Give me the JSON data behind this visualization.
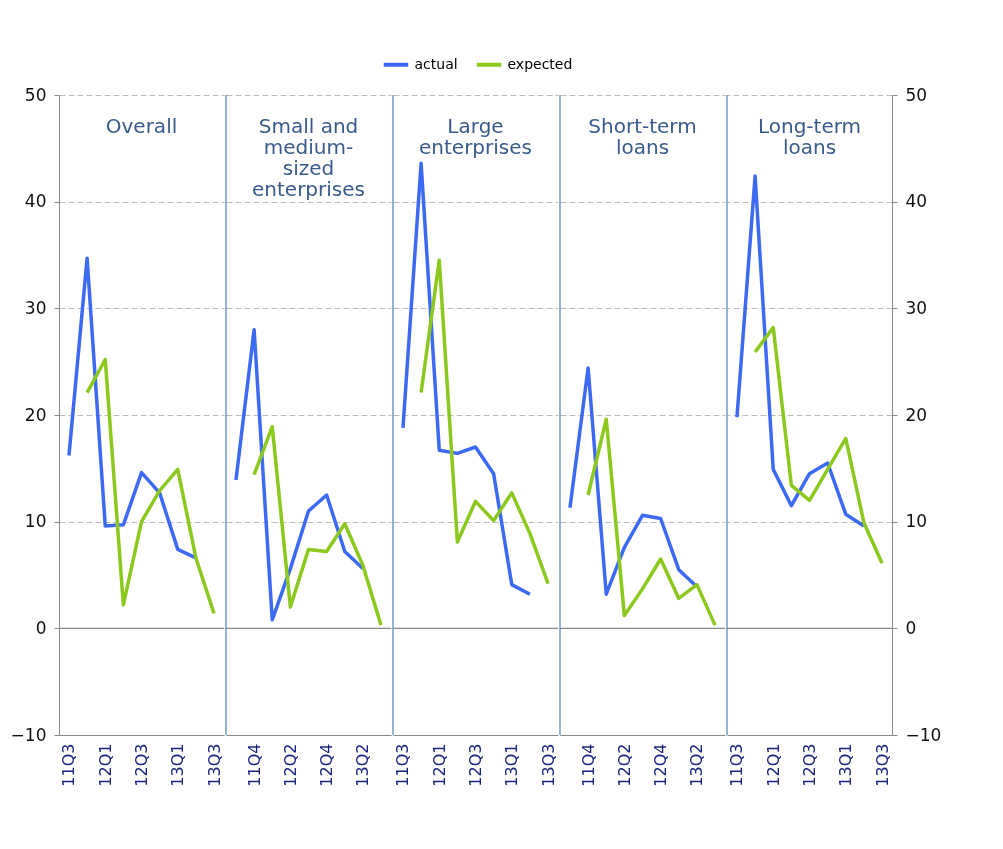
{
  "chart_data": [
    {
      "type": "line",
      "title": "Overall",
      "categories": [
        "11Q3",
        null,
        "12Q1",
        null,
        "12Q3",
        null,
        "13Q1",
        null,
        "13Q3"
      ],
      "series": [
        {
          "name": "actual",
          "color": "#3d6af5",
          "values": [
            16.2,
            34.7,
            9.6,
            9.7,
            14.6,
            12.7,
            7.4,
            6.6,
            null
          ]
        },
        {
          "name": "expected",
          "color": "#8dc81e",
          "values": [
            null,
            22.1,
            25.2,
            2.2,
            10.0,
            12.9,
            14.9,
            6.6,
            1.4
          ]
        }
      ],
      "ylim": [
        -10,
        50
      ],
      "yticks": [
        -10,
        0,
        10,
        20,
        30,
        40,
        50
      ],
      "grid": "y",
      "legend": "top",
      "ref_lines": [
        {
          "axis": "y",
          "value": 0,
          "color": "#888888"
        }
      ]
    },
    {
      "type": "line",
      "title": "Small and medium-sized enterprises",
      "categories": [
        null,
        "11Q4",
        null,
        "12Q2",
        null,
        "12Q4",
        null,
        "13Q2",
        null
      ],
      "series": [
        {
          "name": "actual",
          "color": "#3d6af5",
          "values": [
            13.9,
            28.0,
            0.8,
            5.6,
            11.0,
            12.5,
            7.2,
            5.6,
            null
          ]
        },
        {
          "name": "expected",
          "color": "#8dc81e",
          "values": [
            null,
            14.4,
            18.9,
            2.0,
            7.4,
            7.2,
            9.8,
            5.9,
            0.3
          ]
        }
      ],
      "ylim": [
        -10,
        50
      ],
      "yticks": [
        -10,
        0,
        10,
        20,
        30,
        40,
        50
      ],
      "grid": "y",
      "tick_labels": "x",
      "ref_lines": [
        {
          "axis": "y",
          "value": 0,
          "color": "#888888"
        }
      ]
    },
    {
      "type": "line",
      "title": "Large enterprises",
      "categories": [
        "11Q3",
        null,
        "12Q1",
        null,
        "12Q3",
        null,
        "13Q1",
        null,
        "13Q3"
      ],
      "series": [
        {
          "name": "actual",
          "color": "#3d6af5",
          "values": [
            18.8,
            43.6,
            16.7,
            16.4,
            17.0,
            14.5,
            4.1,
            3.2,
            null
          ]
        },
        {
          "name": "expected",
          "color": "#8dc81e",
          "values": [
            null,
            22.1,
            34.5,
            8.1,
            11.9,
            10.1,
            12.7,
            8.9,
            4.2
          ]
        }
      ],
      "ylim": [
        -10,
        50
      ],
      "yticks": [
        -10,
        0,
        10,
        20,
        30,
        40,
        50
      ],
      "grid": "y",
      "tick_labels": "x",
      "ref_lines": [
        {
          "axis": "y",
          "value": 0,
          "color": "#888888"
        }
      ]
    },
    {
      "type": "line",
      "title": "Short-term loans",
      "categories": [
        null,
        "11Q4",
        null,
        "12Q2",
        null,
        "12Q4",
        null,
        "13Q2",
        null
      ],
      "series": [
        {
          "name": "actual",
          "color": "#3d6af5",
          "values": [
            11.3,
            24.4,
            3.2,
            7.6,
            10.6,
            10.3,
            5.5,
            3.9,
            null
          ]
        },
        {
          "name": "expected",
          "color": "#8dc81e",
          "values": [
            null,
            12.5,
            19.6,
            1.2,
            3.7,
            6.5,
            2.8,
            4.1,
            0.3
          ]
        }
      ],
      "ylim": [
        -10,
        50
      ],
      "yticks": [
        -10,
        0,
        10,
        20,
        30,
        40,
        50
      ],
      "grid": "y",
      "tick_labels": "x",
      "ref_lines": [
        {
          "axis": "y",
          "value": 0,
          "color": "#888888"
        }
      ]
    },
    {
      "type": "line",
      "title": "Long-term loans",
      "categories": [
        "11Q3",
        null,
        "12Q1",
        null,
        "12Q3",
        null,
        "13Q1",
        null,
        "13Q3"
      ],
      "series": [
        {
          "name": "actual",
          "color": "#3d6af5",
          "axis": "y2",
          "values": [
            19.8,
            42.4,
            14.9,
            11.5,
            14.5,
            15.5,
            10.7,
            9.6,
            null
          ]
        },
        {
          "name": "expected",
          "color": "#8dc81e",
          "axis": "y2",
          "values": [
            null,
            25.9,
            28.2,
            13.4,
            12.0,
            14.9,
            17.8,
            9.9,
            6.1
          ]
        }
      ],
      "y2lim": [
        -10,
        50
      ],
      "y2ticks": [
        -10,
        0,
        10,
        20,
        30,
        40,
        50
      ],
      "grid": "y",
      "ref_lines": [
        {
          "axis": "y2",
          "value": 0,
          "color": "#888888"
        }
      ]
    }
  ]
}
